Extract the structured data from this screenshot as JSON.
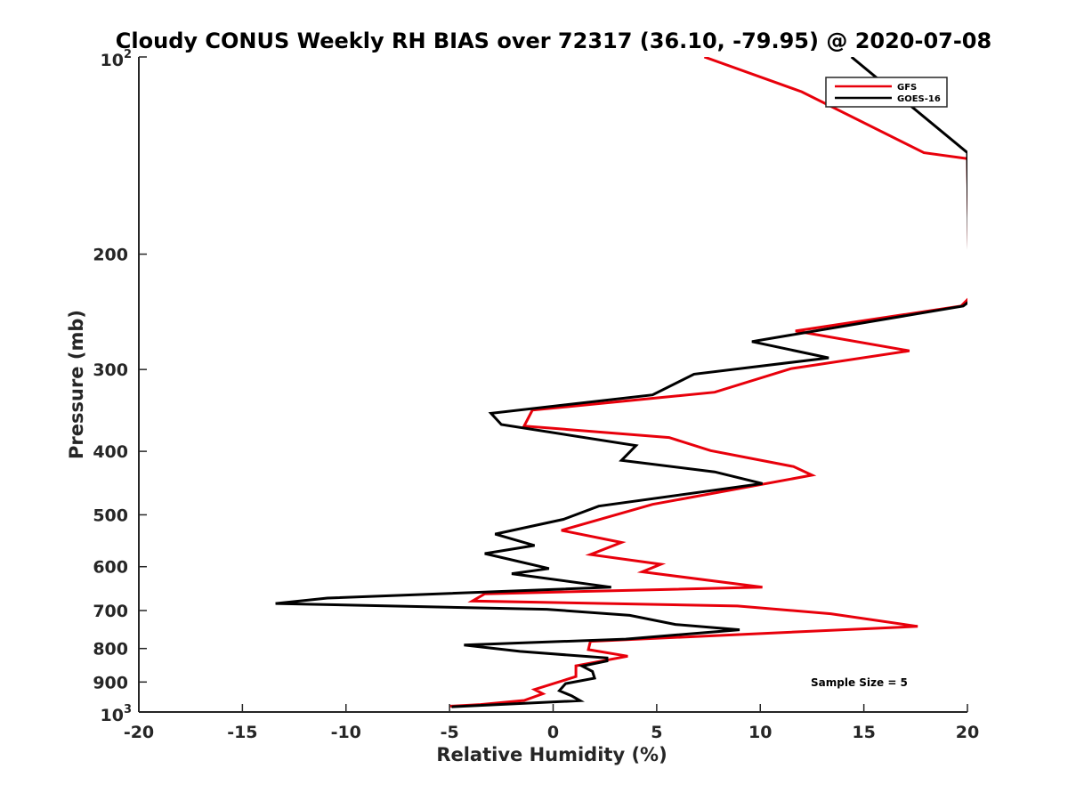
{
  "chart_data": {
    "type": "line",
    "title": "Cloudy CONUS Weekly RH BIAS over 72317 (36.10, -79.95) @ 2020-07-08",
    "xlabel": "Relative Humidity (%)",
    "ylabel": "Pressure (mb)",
    "xlim": [
      -20,
      20
    ],
    "ylim": [
      100,
      1000
    ],
    "y_scale": "log",
    "y_reversed": true,
    "grid": false,
    "legend_position": "top-right",
    "x_ticks": [
      "-20",
      "-15",
      "-10",
      "-5",
      "0",
      "5",
      "10",
      "15",
      "20"
    ],
    "y_ticks": [
      {
        "value": 100,
        "base": "10",
        "exp": "2"
      },
      {
        "value": 200,
        "label": "200"
      },
      {
        "value": 300,
        "label": "300"
      },
      {
        "value": 400,
        "label": "400"
      },
      {
        "value": 500,
        "label": "500"
      },
      {
        "value": 600,
        "label": "600"
      },
      {
        "value": 700,
        "label": "700"
      },
      {
        "value": 800,
        "label": "800"
      },
      {
        "value": 900,
        "label": "900"
      },
      {
        "value": 1000,
        "base": "10",
        "exp": "3"
      }
    ],
    "annotation": "Sample Size = 5",
    "series": [
      {
        "name": "GFS",
        "color": "#e8000b",
        "points": [
          [
            7.3,
            100
          ],
          [
            12.0,
            113
          ],
          [
            17.9,
            140
          ],
          [
            20.0,
            143
          ],
          [
            20.1,
            233
          ],
          [
            19.7,
            240
          ],
          [
            11.7,
            262
          ],
          [
            17.2,
            281
          ],
          [
            11.5,
            299
          ],
          [
            7.8,
            325
          ],
          [
            -1.0,
            346
          ],
          [
            -1.4,
            366
          ],
          [
            5.6,
            381
          ],
          [
            7.6,
            399
          ],
          [
            11.6,
            422
          ],
          [
            12.5,
            435
          ],
          [
            4.8,
            482
          ],
          [
            0.4,
            528
          ],
          [
            3.3,
            551
          ],
          [
            1.8,
            575
          ],
          [
            5.2,
            595
          ],
          [
            4.3,
            611
          ],
          [
            10.1,
            645
          ],
          [
            -3.3,
            660
          ],
          [
            -3.9,
            677
          ],
          [
            8.9,
            689
          ],
          [
            13.4,
            708
          ],
          [
            17.6,
            740
          ],
          [
            1.8,
            780
          ],
          [
            1.7,
            803
          ],
          [
            3.6,
            822
          ],
          [
            1.1,
            850
          ],
          [
            1.1,
            883
          ],
          [
            -0.9,
            924
          ],
          [
            -0.5,
            938
          ],
          [
            -1.4,
            960
          ],
          [
            -3.5,
            974
          ],
          [
            -5.0,
            980
          ]
        ]
      },
      {
        "name": "GOES-16",
        "color": "#000000",
        "points": [
          [
            14.4,
            100
          ],
          [
            20.0,
            140
          ],
          [
            20.1,
            236
          ],
          [
            19.8,
            240
          ],
          [
            9.6,
            272
          ],
          [
            13.3,
            288
          ],
          [
            6.8,
            305
          ],
          [
            4.8,
            328
          ],
          [
            -3.0,
            350
          ],
          [
            -2.5,
            364
          ],
          [
            4.0,
            392
          ],
          [
            3.3,
            413
          ],
          [
            7.8,
            430
          ],
          [
            10.1,
            448
          ],
          [
            2.2,
            485
          ],
          [
            0.5,
            508
          ],
          [
            -2.8,
            535
          ],
          [
            -0.9,
            557
          ],
          [
            -3.3,
            573
          ],
          [
            -0.2,
            604
          ],
          [
            -2.0,
            615
          ],
          [
            2.8,
            645
          ],
          [
            -10.9,
            670
          ],
          [
            -13.4,
            683
          ],
          [
            -0.3,
            697
          ],
          [
            3.7,
            712
          ],
          [
            5.9,
            735
          ],
          [
            9.0,
            749
          ],
          [
            3.5,
            774
          ],
          [
            -4.3,
            790
          ],
          [
            -1.6,
            808
          ],
          [
            2.6,
            827
          ],
          [
            2.6,
            836
          ],
          [
            1.4,
            851
          ],
          [
            1.9,
            867
          ],
          [
            2.0,
            888
          ],
          [
            0.6,
            905
          ],
          [
            0.3,
            928
          ],
          [
            0.9,
            945
          ],
          [
            1.3,
            961
          ],
          [
            -4.9,
            982
          ]
        ]
      }
    ]
  }
}
